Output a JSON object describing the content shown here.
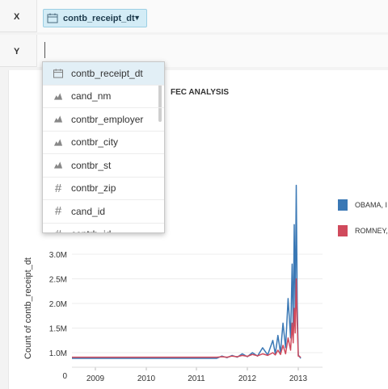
{
  "shelves": {
    "x_label": "X",
    "y_label": "Y",
    "x_field": "contb_receipt_dt"
  },
  "dropdown": {
    "items": [
      {
        "label": "contb_receipt_dt",
        "icon": "calendar-icon"
      },
      {
        "label": "cand_nm",
        "icon": "dimension-icon"
      },
      {
        "label": "contbr_employer",
        "icon": "dimension-icon"
      },
      {
        "label": "contbr_city",
        "icon": "dimension-icon"
      },
      {
        "label": "contbr_st",
        "icon": "dimension-icon"
      },
      {
        "label": "contbr_zip",
        "icon": "hash-icon"
      },
      {
        "label": "cand_id",
        "icon": "hash-icon"
      },
      {
        "label": "contrb_id",
        "icon": "hash-icon"
      }
    ]
  },
  "colors": {
    "obama": "#3a78b5",
    "romney": "#d04a5c"
  },
  "chart_data": {
    "type": "line",
    "title": "FEC ANALYSIS",
    "xlabel": "",
    "ylabel": "Count of contb_receipt_dt",
    "x_ticks": [
      "2009",
      "2010",
      "2011",
      "2012",
      "2013"
    ],
    "y_ticks": [
      "0",
      "1.0M",
      "1.5M",
      "2.0M",
      "2.5M",
      "3.0M"
    ],
    "legend": [
      "OBAMA, I",
      "ROMNEY,"
    ],
    "series": [
      {
        "name": "OBAMA, I",
        "color": "#3a78b5",
        "points": [
          [
            2008.5,
            0.75
          ],
          [
            2011.4,
            0.75
          ],
          [
            2011.5,
            0.85
          ],
          [
            2011.6,
            0.78
          ],
          [
            2011.7,
            0.88
          ],
          [
            2011.8,
            0.8
          ],
          [
            2011.9,
            0.95
          ],
          [
            2012.0,
            0.82
          ],
          [
            2012.1,
            1.0
          ],
          [
            2012.2,
            0.85
          ],
          [
            2012.3,
            1.1
          ],
          [
            2012.4,
            0.9
          ],
          [
            2012.5,
            1.25
          ],
          [
            2012.55,
            0.95
          ],
          [
            2012.6,
            1.35
          ],
          [
            2012.65,
            1.0
          ],
          [
            2012.7,
            1.6
          ],
          [
            2012.75,
            1.1
          ],
          [
            2012.8,
            2.1
          ],
          [
            2012.85,
            1.3
          ],
          [
            2012.88,
            2.8
          ],
          [
            2012.9,
            1.5
          ],
          [
            2012.92,
            3.6
          ],
          [
            2012.94,
            1.8
          ],
          [
            2012.96,
            4.4
          ],
          [
            2012.98,
            2.0
          ],
          [
            2013.0,
            0.9
          ],
          [
            2013.05,
            0.75
          ]
        ]
      },
      {
        "name": "ROMNEY,",
        "color": "#d04a5c",
        "points": [
          [
            2008.5,
            0.8
          ],
          [
            2011.4,
            0.8
          ],
          [
            2011.5,
            0.82
          ],
          [
            2011.6,
            0.8
          ],
          [
            2011.7,
            0.85
          ],
          [
            2011.8,
            0.82
          ],
          [
            2011.9,
            0.88
          ],
          [
            2012.0,
            0.84
          ],
          [
            2012.1,
            0.92
          ],
          [
            2012.2,
            0.86
          ],
          [
            2012.3,
            0.95
          ],
          [
            2012.4,
            0.88
          ],
          [
            2012.5,
            1.0
          ],
          [
            2012.55,
            0.9
          ],
          [
            2012.6,
            1.05
          ],
          [
            2012.65,
            0.92
          ],
          [
            2012.7,
            1.15
          ],
          [
            2012.75,
            0.95
          ],
          [
            2012.8,
            1.3
          ],
          [
            2012.85,
            1.05
          ],
          [
            2012.88,
            1.6
          ],
          [
            2012.9,
            1.2
          ],
          [
            2012.92,
            1.9
          ],
          [
            2012.94,
            1.4
          ],
          [
            2012.96,
            2.5
          ],
          [
            2012.98,
            1.6
          ],
          [
            2013.0,
            0.85
          ],
          [
            2013.05,
            0.8
          ]
        ]
      }
    ]
  }
}
